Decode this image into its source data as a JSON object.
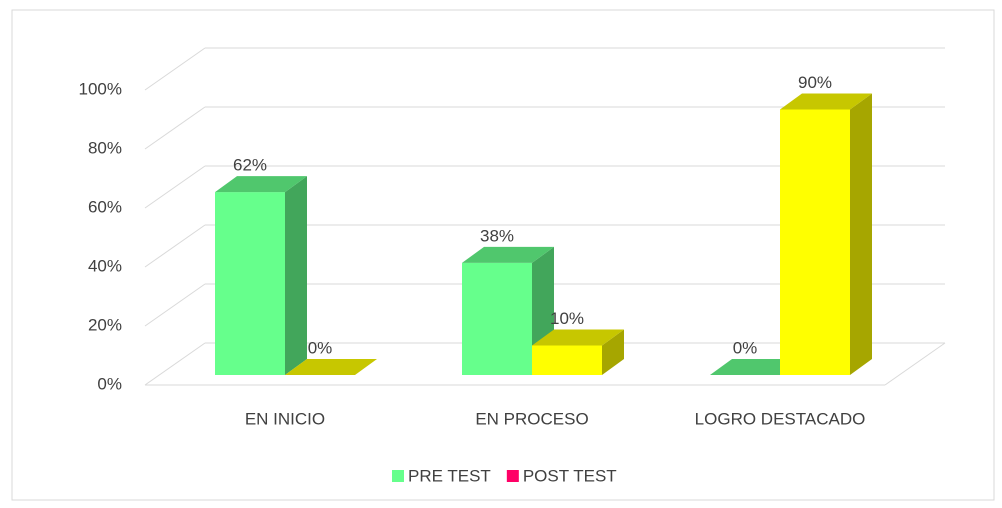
{
  "chart_data": {
    "type": "bar3d",
    "categories": [
      "EN INICIO",
      "EN PROCESO",
      "LOGRO DESTACADO"
    ],
    "series": [
      {
        "name": "PRE TEST",
        "color": "#66ff8c",
        "legend_color": "#66ff8c",
        "values": [
          62,
          38,
          0
        ],
        "value_labels": [
          "62%",
          "38%",
          "0%"
        ]
      },
      {
        "name": "POST TEST",
        "color": "#ffff00",
        "legend_color": "#ff0066",
        "values": [
          0,
          10,
          90
        ],
        "value_labels": [
          "0%",
          "10%",
          "90%"
        ]
      }
    ],
    "ylim": [
      0,
      100
    ],
    "yticks": [
      {
        "value": 0,
        "label": "0%"
      },
      {
        "value": 20,
        "label": "20%"
      },
      {
        "value": 40,
        "label": "40%"
      },
      {
        "value": 60,
        "label": "60%"
      },
      {
        "value": 80,
        "label": "80%"
      },
      {
        "value": 100,
        "label": "100%"
      }
    ],
    "grid": true,
    "legend": "bottom"
  }
}
